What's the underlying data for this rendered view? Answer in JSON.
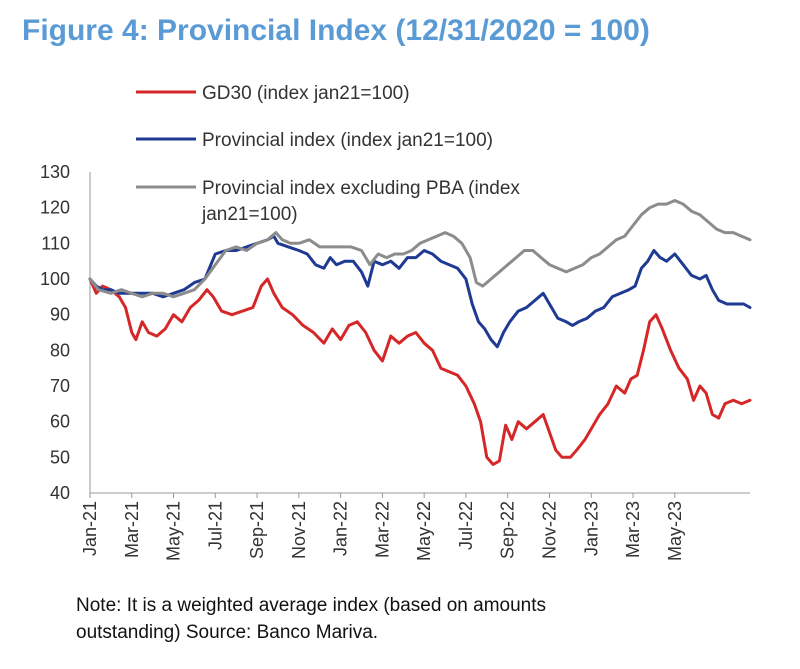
{
  "figure": {
    "title": "Figure 4: Provincial Index (12/31/2020 = 100)",
    "note_line1": "Note: It is a weighted average index (based on amounts",
    "note_line2": "outstanding) Source: Banco Mariva."
  },
  "chart_data": {
    "type": "line",
    "title": "Figure 4: Provincial Index (12/31/2020 = 100)",
    "xlabel": "",
    "ylabel": "",
    "ylim": [
      40,
      130
    ],
    "yticks": [
      40,
      50,
      60,
      70,
      80,
      90,
      100,
      110,
      120,
      130
    ],
    "xticks": [
      "Jan-21",
      "Mar-21",
      "May-21",
      "Jul-21",
      "Sep-21",
      "Nov-21",
      "Jan-22",
      "Mar-22",
      "May-22",
      "Jul-22",
      "Sep-22",
      "Nov-22",
      "Jan-23",
      "Mar-23",
      "May-23"
    ],
    "x_units": "months since Jan-21",
    "grid": false,
    "legend_position": "top",
    "series": [
      {
        "name": "GD30 (index jan21=100)",
        "color": "#d62728",
        "points": [
          [
            0,
            100
          ],
          [
            0.3,
            96
          ],
          [
            0.6,
            98
          ],
          [
            1,
            97
          ],
          [
            1.4,
            95
          ],
          [
            1.7,
            92
          ],
          [
            2,
            85
          ],
          [
            2.2,
            83
          ],
          [
            2.5,
            88
          ],
          [
            2.8,
            85
          ],
          [
            3.2,
            84
          ],
          [
            3.6,
            86
          ],
          [
            4,
            90
          ],
          [
            4.4,
            88
          ],
          [
            4.8,
            92
          ],
          [
            5.2,
            94
          ],
          [
            5.6,
            97
          ],
          [
            5.9,
            95
          ],
          [
            6.3,
            91
          ],
          [
            6.8,
            90
          ],
          [
            7.3,
            91
          ],
          [
            7.8,
            92
          ],
          [
            8.2,
            98
          ],
          [
            8.5,
            100
          ],
          [
            8.8,
            96
          ],
          [
            9.2,
            92
          ],
          [
            9.7,
            90
          ],
          [
            10.2,
            87
          ],
          [
            10.7,
            85
          ],
          [
            11.2,
            82
          ],
          [
            11.6,
            86
          ],
          [
            12,
            83
          ],
          [
            12.4,
            87
          ],
          [
            12.8,
            88
          ],
          [
            13.2,
            85
          ],
          [
            13.6,
            80
          ],
          [
            14,
            77
          ],
          [
            14.4,
            84
          ],
          [
            14.8,
            82
          ],
          [
            15.2,
            84
          ],
          [
            15.6,
            85
          ],
          [
            16,
            82
          ],
          [
            16.4,
            80
          ],
          [
            16.8,
            75
          ],
          [
            17.2,
            74
          ],
          [
            17.6,
            73
          ],
          [
            18,
            70
          ],
          [
            18.4,
            65
          ],
          [
            18.7,
            60
          ],
          [
            19,
            50
          ],
          [
            19.3,
            48
          ],
          [
            19.6,
            49
          ],
          [
            19.9,
            59
          ],
          [
            20.2,
            55
          ],
          [
            20.5,
            60
          ],
          [
            20.9,
            58
          ],
          [
            21.3,
            60
          ],
          [
            21.7,
            62
          ],
          [
            22,
            57
          ],
          [
            22.3,
            52
          ],
          [
            22.6,
            50
          ],
          [
            23,
            50
          ],
          [
            23.3,
            52
          ],
          [
            23.7,
            55
          ],
          [
            24,
            58
          ],
          [
            24.4,
            62
          ],
          [
            24.8,
            65
          ],
          [
            25.2,
            70
          ],
          [
            25.6,
            68
          ],
          [
            25.9,
            72
          ],
          [
            26.2,
            73
          ],
          [
            26.5,
            80
          ],
          [
            26.8,
            88
          ],
          [
            27.1,
            90
          ],
          [
            27.4,
            86
          ],
          [
            27.8,
            80
          ],
          [
            28.2,
            75
          ],
          [
            28.6,
            72
          ],
          [
            28.9,
            66
          ],
          [
            29.2,
            70
          ],
          [
            29.5,
            68
          ],
          [
            29.8,
            62
          ],
          [
            30.1,
            61
          ],
          [
            30.4,
            65
          ],
          [
            30.8,
            66
          ],
          [
            31.2,
            65
          ],
          [
            31.6,
            66
          ]
        ]
      },
      {
        "name": "Provincial index (index jan21=100)",
        "color": "#1f3a93",
        "points": [
          [
            0,
            100
          ],
          [
            0.3,
            98
          ],
          [
            0.6,
            97
          ],
          [
            1,
            97
          ],
          [
            1.4,
            96
          ],
          [
            2,
            96
          ],
          [
            2.5,
            96
          ],
          [
            3,
            96
          ],
          [
            3.5,
            95
          ],
          [
            4,
            96
          ],
          [
            4.5,
            97
          ],
          [
            5,
            99
          ],
          [
            5.5,
            100
          ],
          [
            6,
            107
          ],
          [
            6.5,
            108
          ],
          [
            7,
            108
          ],
          [
            7.5,
            109
          ],
          [
            8,
            110
          ],
          [
            8.5,
            111
          ],
          [
            8.8,
            112
          ],
          [
            9,
            110
          ],
          [
            9.5,
            109
          ],
          [
            10,
            108
          ],
          [
            10.4,
            107
          ],
          [
            10.8,
            104
          ],
          [
            11.2,
            103
          ],
          [
            11.5,
            106
          ],
          [
            11.8,
            104
          ],
          [
            12.2,
            105
          ],
          [
            12.6,
            105
          ],
          [
            13,
            102
          ],
          [
            13.3,
            98
          ],
          [
            13.6,
            105
          ],
          [
            14,
            104
          ],
          [
            14.4,
            105
          ],
          [
            14.8,
            103
          ],
          [
            15.2,
            106
          ],
          [
            15.6,
            106
          ],
          [
            16,
            108
          ],
          [
            16.4,
            107
          ],
          [
            16.8,
            105
          ],
          [
            17.2,
            104
          ],
          [
            17.6,
            103
          ],
          [
            18,
            100
          ],
          [
            18.3,
            93
          ],
          [
            18.6,
            88
          ],
          [
            18.9,
            86
          ],
          [
            19.2,
            83
          ],
          [
            19.5,
            81
          ],
          [
            19.8,
            85
          ],
          [
            20.1,
            88
          ],
          [
            20.5,
            91
          ],
          [
            20.9,
            92
          ],
          [
            21.3,
            94
          ],
          [
            21.7,
            96
          ],
          [
            22,
            93
          ],
          [
            22.4,
            89
          ],
          [
            22.8,
            88
          ],
          [
            23.1,
            87
          ],
          [
            23.4,
            88
          ],
          [
            23.8,
            89
          ],
          [
            24.2,
            91
          ],
          [
            24.6,
            92
          ],
          [
            25,
            95
          ],
          [
            25.4,
            96
          ],
          [
            25.8,
            97
          ],
          [
            26.1,
            98
          ],
          [
            26.4,
            103
          ],
          [
            26.7,
            105
          ],
          [
            27,
            108
          ],
          [
            27.3,
            106
          ],
          [
            27.6,
            105
          ],
          [
            28,
            107
          ],
          [
            28.4,
            104
          ],
          [
            28.8,
            101
          ],
          [
            29.2,
            100
          ],
          [
            29.5,
            101
          ],
          [
            29.8,
            97
          ],
          [
            30.1,
            94
          ],
          [
            30.5,
            93
          ],
          [
            30.9,
            93
          ],
          [
            31.3,
            93
          ],
          [
            31.6,
            92
          ]
        ]
      },
      {
        "name": "Provincial index excluding PBA (index jan21=100)",
        "color": "#8c8c8c",
        "points": [
          [
            0,
            100
          ],
          [
            0.4,
            97
          ],
          [
            1,
            96
          ],
          [
            1.5,
            97
          ],
          [
            2,
            96
          ],
          [
            2.5,
            95
          ],
          [
            3,
            96
          ],
          [
            3.5,
            96
          ],
          [
            4,
            95
          ],
          [
            4.5,
            96
          ],
          [
            5,
            97
          ],
          [
            5.5,
            100
          ],
          [
            6,
            104
          ],
          [
            6.5,
            108
          ],
          [
            7,
            109
          ],
          [
            7.5,
            108
          ],
          [
            8,
            110
          ],
          [
            8.5,
            111
          ],
          [
            8.9,
            113
          ],
          [
            9.2,
            111
          ],
          [
            9.6,
            110
          ],
          [
            10,
            110
          ],
          [
            10.5,
            111
          ],
          [
            11,
            109
          ],
          [
            11.5,
            109
          ],
          [
            12,
            109
          ],
          [
            12.5,
            109
          ],
          [
            13,
            108
          ],
          [
            13.4,
            104
          ],
          [
            13.8,
            107
          ],
          [
            14.2,
            106
          ],
          [
            14.6,
            107
          ],
          [
            15,
            107
          ],
          [
            15.4,
            108
          ],
          [
            15.8,
            110
          ],
          [
            16.2,
            111
          ],
          [
            16.6,
            112
          ],
          [
            17,
            113
          ],
          [
            17.4,
            112
          ],
          [
            17.8,
            110
          ],
          [
            18.2,
            106
          ],
          [
            18.5,
            99
          ],
          [
            18.8,
            98
          ],
          [
            19.2,
            100
          ],
          [
            19.6,
            102
          ],
          [
            20,
            104
          ],
          [
            20.4,
            106
          ],
          [
            20.8,
            108
          ],
          [
            21.2,
            108
          ],
          [
            21.6,
            106
          ],
          [
            22,
            104
          ],
          [
            22.4,
            103
          ],
          [
            22.8,
            102
          ],
          [
            23.2,
            103
          ],
          [
            23.6,
            104
          ],
          [
            24,
            106
          ],
          [
            24.4,
            107
          ],
          [
            24.8,
            109
          ],
          [
            25.2,
            111
          ],
          [
            25.6,
            112
          ],
          [
            26,
            115
          ],
          [
            26.4,
            118
          ],
          [
            26.8,
            120
          ],
          [
            27.2,
            121
          ],
          [
            27.6,
            121
          ],
          [
            28,
            122
          ],
          [
            28.4,
            121
          ],
          [
            28.8,
            119
          ],
          [
            29.2,
            118
          ],
          [
            29.6,
            116
          ],
          [
            30,
            114
          ],
          [
            30.4,
            113
          ],
          [
            30.8,
            113
          ],
          [
            31.2,
            112
          ],
          [
            31.6,
            111
          ]
        ]
      }
    ],
    "legend": [
      {
        "label_line1": "GD30 (index jan21=100)",
        "label_line2": "",
        "color": "#d62728"
      },
      {
        "label_line1": "Provincial index (index jan21=100)",
        "label_line2": "",
        "color": "#1f3a93"
      },
      {
        "label_line1": "Provincial index excluding PBA (index",
        "label_line2": "jan21=100)",
        "color": "#8c8c8c"
      }
    ]
  }
}
